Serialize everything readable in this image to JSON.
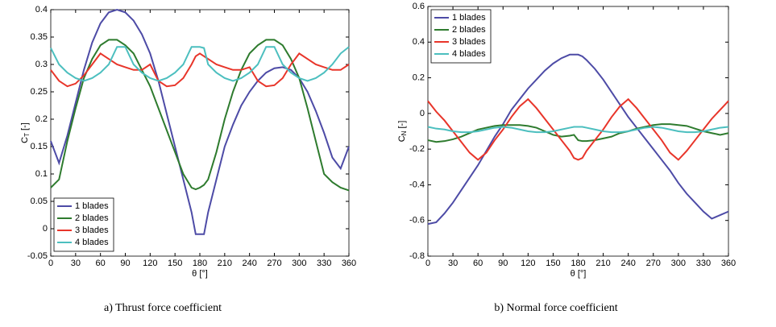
{
  "chart_data": [
    {
      "type": "line",
      "caption": "a) Thrust force coefficient",
      "xlabel": "θ [°]",
      "ylabel": {
        "text": "C",
        "subscript": "T",
        "unit": "[-]"
      },
      "x": [
        0,
        10,
        20,
        30,
        40,
        50,
        60,
        70,
        80,
        90,
        100,
        110,
        120,
        130,
        140,
        150,
        160,
        170,
        175,
        180,
        185,
        190,
        200,
        210,
        220,
        230,
        240,
        250,
        260,
        270,
        280,
        290,
        300,
        310,
        320,
        330,
        340,
        350,
        360
      ],
      "xlim": [
        0,
        360
      ],
      "xticks": [
        0,
        30,
        60,
        90,
        120,
        150,
        180,
        210,
        240,
        270,
        300,
        330,
        360
      ],
      "ylim": [
        -0.05,
        0.4
      ],
      "yticks": [
        -0.05,
        0,
        0.05,
        0.1,
        0.15,
        0.2,
        0.25,
        0.3,
        0.35,
        0.4
      ],
      "legend": "lower left",
      "series": [
        {
          "name": "1 blades",
          "color": "#4d4ba6",
          "values": [
            0.16,
            0.12,
            0.17,
            0.23,
            0.29,
            0.34,
            0.375,
            0.395,
            0.4,
            0.395,
            0.38,
            0.355,
            0.32,
            0.27,
            0.21,
            0.15,
            0.09,
            0.03,
            -0.01,
            -0.01,
            -0.01,
            0.03,
            0.09,
            0.15,
            0.19,
            0.225,
            0.25,
            0.27,
            0.285,
            0.293,
            0.295,
            0.29,
            0.275,
            0.25,
            0.215,
            0.175,
            0.13,
            0.11,
            0.15
          ]
        },
        {
          "name": "2 blades",
          "color": "#2e7b2e",
          "values": [
            0.075,
            0.09,
            0.16,
            0.22,
            0.275,
            0.31,
            0.335,
            0.345,
            0.345,
            0.335,
            0.32,
            0.29,
            0.26,
            0.22,
            0.18,
            0.14,
            0.1,
            0.075,
            0.072,
            0.075,
            0.08,
            0.09,
            0.14,
            0.2,
            0.25,
            0.29,
            0.32,
            0.335,
            0.345,
            0.345,
            0.335,
            0.31,
            0.275,
            0.22,
            0.16,
            0.1,
            0.085,
            0.075,
            0.07
          ]
        },
        {
          "name": "3 blades",
          "color": "#e8352a",
          "values": [
            0.29,
            0.27,
            0.26,
            0.265,
            0.28,
            0.3,
            0.32,
            0.31,
            0.3,
            0.295,
            0.29,
            0.29,
            0.3,
            0.27,
            0.26,
            0.262,
            0.275,
            0.3,
            0.315,
            0.32,
            0.315,
            0.31,
            0.3,
            0.295,
            0.29,
            0.29,
            0.295,
            0.27,
            0.26,
            0.262,
            0.275,
            0.3,
            0.32,
            0.31,
            0.3,
            0.295,
            0.29,
            0.29,
            0.3
          ]
        },
        {
          "name": "4 blades",
          "color": "#4cbfbf",
          "values": [
            0.33,
            0.3,
            0.285,
            0.275,
            0.27,
            0.275,
            0.285,
            0.3,
            0.332,
            0.332,
            0.3,
            0.285,
            0.275,
            0.27,
            0.275,
            0.285,
            0.3,
            0.332,
            0.332,
            0.332,
            0.33,
            0.3,
            0.285,
            0.275,
            0.27,
            0.275,
            0.285,
            0.3,
            0.332,
            0.332,
            0.3,
            0.285,
            0.275,
            0.27,
            0.275,
            0.285,
            0.3,
            0.32,
            0.332
          ]
        }
      ]
    },
    {
      "type": "line",
      "caption": "b) Normal force coefficient",
      "xlabel": "θ [°]",
      "ylabel": {
        "text": "C",
        "subscript": "N",
        "unit": "[-]"
      },
      "x": [
        0,
        10,
        20,
        30,
        40,
        50,
        60,
        70,
        80,
        90,
        100,
        110,
        120,
        130,
        140,
        150,
        160,
        170,
        175,
        180,
        185,
        190,
        200,
        210,
        220,
        230,
        240,
        250,
        260,
        270,
        280,
        290,
        300,
        310,
        320,
        330,
        340,
        350,
        360
      ],
      "xlim": [
        0,
        360
      ],
      "xticks": [
        0,
        30,
        60,
        90,
        120,
        150,
        180,
        210,
        240,
        270,
        300,
        330,
        360
      ],
      "ylim": [
        -0.8,
        0.6
      ],
      "yticks": [
        -0.8,
        -0.6,
        -0.4,
        -0.2,
        0,
        0.2,
        0.4,
        0.6
      ],
      "legend": "upper left",
      "series": [
        {
          "name": "1 blades",
          "color": "#4d4ba6",
          "values": [
            -0.62,
            -0.61,
            -0.56,
            -0.5,
            -0.43,
            -0.36,
            -0.29,
            -0.21,
            -0.13,
            -0.06,
            0.02,
            0.08,
            0.14,
            0.19,
            0.24,
            0.28,
            0.31,
            0.33,
            0.33,
            0.33,
            0.32,
            0.3,
            0.25,
            0.19,
            0.12,
            0.05,
            -0.02,
            -0.08,
            -0.14,
            -0.2,
            -0.26,
            -0.32,
            -0.39,
            -0.45,
            -0.5,
            -0.55,
            -0.59,
            -0.57,
            -0.55
          ]
        },
        {
          "name": "2 blades",
          "color": "#2e7b2e",
          "values": [
            -0.15,
            -0.16,
            -0.155,
            -0.145,
            -0.13,
            -0.11,
            -0.09,
            -0.08,
            -0.07,
            -0.065,
            -0.065,
            -0.065,
            -0.07,
            -0.08,
            -0.1,
            -0.12,
            -0.13,
            -0.125,
            -0.12,
            -0.15,
            -0.155,
            -0.155,
            -0.15,
            -0.14,
            -0.13,
            -0.11,
            -0.1,
            -0.085,
            -0.075,
            -0.065,
            -0.06,
            -0.06,
            -0.065,
            -0.07,
            -0.085,
            -0.1,
            -0.11,
            -0.12,
            -0.11
          ]
        },
        {
          "name": "3 blades",
          "color": "#e8352a",
          "values": [
            0.07,
            0.01,
            -0.04,
            -0.1,
            -0.16,
            -0.22,
            -0.26,
            -0.22,
            -0.15,
            -0.09,
            -0.02,
            0.04,
            0.08,
            0.03,
            -0.03,
            -0.09,
            -0.15,
            -0.21,
            -0.25,
            -0.26,
            -0.25,
            -0.21,
            -0.15,
            -0.09,
            -0.02,
            0.04,
            0.08,
            0.03,
            -0.03,
            -0.09,
            -0.15,
            -0.22,
            -0.26,
            -0.21,
            -0.15,
            -0.09,
            -0.03,
            0.02,
            0.07
          ]
        },
        {
          "name": "4 blades",
          "color": "#4cbfbf",
          "values": [
            -0.075,
            -0.085,
            -0.09,
            -0.1,
            -0.105,
            -0.105,
            -0.1,
            -0.09,
            -0.08,
            -0.075,
            -0.08,
            -0.09,
            -0.1,
            -0.105,
            -0.105,
            -0.1,
            -0.09,
            -0.08,
            -0.075,
            -0.075,
            -0.075,
            -0.08,
            -0.09,
            -0.1,
            -0.105,
            -0.105,
            -0.1,
            -0.09,
            -0.08,
            -0.075,
            -0.08,
            -0.09,
            -0.1,
            -0.105,
            -0.105,
            -0.1,
            -0.09,
            -0.08,
            -0.075
          ]
        }
      ]
    }
  ]
}
